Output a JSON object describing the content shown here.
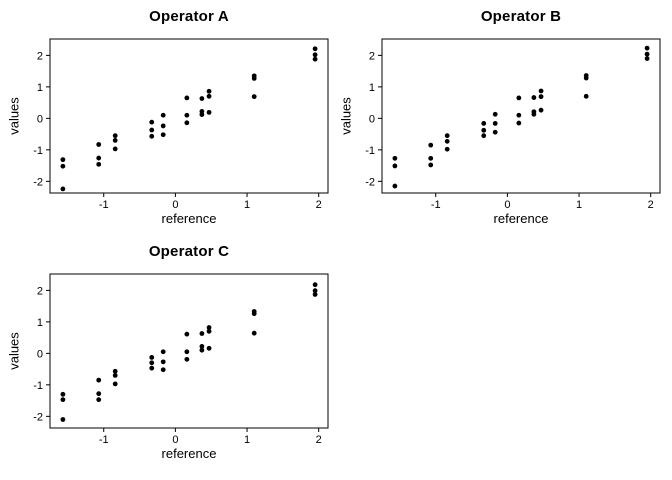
{
  "figure": {
    "kind": "r-scatterplot-grid",
    "background_color": "#ffffff",
    "axis_color": "#000000",
    "point_color": "#000000",
    "text_color": "#000000"
  },
  "chart_data": [
    {
      "type": "scatter",
      "title": "Operator A",
      "xlabel": "reference",
      "ylabel": "values",
      "xlim": [
        -1.75,
        2.13
      ],
      "ylim": [
        -2.37,
        2.52
      ],
      "xticks": [
        -1,
        0,
        1,
        2
      ],
      "yticks": [
        -2,
        -1,
        0,
        1,
        2
      ],
      "grid": false,
      "legend": null,
      "points": [
        [
          -1.57,
          -1.31
        ],
        [
          -1.57,
          -1.52
        ],
        [
          -1.57,
          -2.24
        ],
        [
          -1.07,
          -0.83
        ],
        [
          -1.07,
          -1.26
        ],
        [
          -1.07,
          -1.46
        ],
        [
          -0.84,
          -0.55
        ],
        [
          -0.84,
          -0.7
        ],
        [
          -0.84,
          -0.97
        ],
        [
          -0.33,
          -0.12
        ],
        [
          -0.33,
          -0.37
        ],
        [
          -0.33,
          -0.57
        ],
        [
          -0.17,
          0.1
        ],
        [
          -0.17,
          -0.24
        ],
        [
          -0.17,
          -0.52
        ],
        [
          0.16,
          0.65
        ],
        [
          0.16,
          0.1
        ],
        [
          0.16,
          -0.14
        ],
        [
          0.37,
          0.63
        ],
        [
          0.37,
          0.22
        ],
        [
          0.37,
          0.12
        ],
        [
          0.47,
          0.86
        ],
        [
          0.47,
          0.7
        ],
        [
          0.47,
          0.19
        ],
        [
          1.1,
          1.35
        ],
        [
          1.1,
          1.27
        ],
        [
          1.1,
          0.69
        ],
        [
          1.95,
          2.21
        ],
        [
          1.95,
          2.02
        ],
        [
          1.95,
          1.88
        ]
      ]
    },
    {
      "type": "scatter",
      "title": "Operator B",
      "xlabel": "reference",
      "ylabel": "values",
      "xlim": [
        -1.75,
        2.13
      ],
      "ylim": [
        -2.37,
        2.52
      ],
      "xticks": [
        -1,
        0,
        1,
        2
      ],
      "yticks": [
        -2,
        -1,
        0,
        1,
        2
      ],
      "grid": false,
      "legend": null,
      "points": [
        [
          -1.57,
          -1.27
        ],
        [
          -1.57,
          -1.51
        ],
        [
          -1.57,
          -2.15
        ],
        [
          -1.07,
          -0.85
        ],
        [
          -1.07,
          -1.27
        ],
        [
          -1.07,
          -1.48
        ],
        [
          -0.84,
          -0.55
        ],
        [
          -0.84,
          -0.73
        ],
        [
          -0.84,
          -0.98
        ],
        [
          -0.33,
          -0.16
        ],
        [
          -0.33,
          -0.38
        ],
        [
          -0.33,
          -0.55
        ],
        [
          -0.17,
          0.13
        ],
        [
          -0.17,
          -0.16
        ],
        [
          -0.17,
          -0.44
        ],
        [
          0.16,
          0.65
        ],
        [
          0.16,
          0.1
        ],
        [
          0.16,
          -0.15
        ],
        [
          0.37,
          0.66
        ],
        [
          0.37,
          0.21
        ],
        [
          0.37,
          0.13
        ],
        [
          0.47,
          0.87
        ],
        [
          0.47,
          0.69
        ],
        [
          0.47,
          0.26
        ],
        [
          1.1,
          1.36
        ],
        [
          1.1,
          1.28
        ],
        [
          1.1,
          0.7
        ],
        [
          1.95,
          2.23
        ],
        [
          1.95,
          2.04
        ],
        [
          1.95,
          1.9
        ]
      ]
    },
    {
      "type": "scatter",
      "title": "Operator C",
      "xlabel": "reference",
      "ylabel": "values",
      "xlim": [
        -1.75,
        2.13
      ],
      "ylim": [
        -2.37,
        2.52
      ],
      "xticks": [
        -1,
        0,
        1,
        2
      ],
      "yticks": [
        -2,
        -1,
        0,
        1,
        2
      ],
      "grid": false,
      "legend": null,
      "points": [
        [
          -1.57,
          -1.3
        ],
        [
          -1.57,
          -1.47
        ],
        [
          -1.57,
          -2.1
        ],
        [
          -1.07,
          -0.85
        ],
        [
          -1.07,
          -1.28
        ],
        [
          -1.07,
          -1.47
        ],
        [
          -0.84,
          -0.57
        ],
        [
          -0.84,
          -0.7
        ],
        [
          -0.84,
          -0.97
        ],
        [
          -0.33,
          -0.13
        ],
        [
          -0.33,
          -0.3
        ],
        [
          -0.33,
          -0.47
        ],
        [
          -0.17,
          0.05
        ],
        [
          -0.17,
          -0.27
        ],
        [
          -0.17,
          -0.52
        ],
        [
          0.16,
          0.61
        ],
        [
          0.16,
          0.05
        ],
        [
          0.16,
          -0.19
        ],
        [
          0.37,
          0.63
        ],
        [
          0.37,
          0.22
        ],
        [
          0.37,
          0.1
        ],
        [
          0.47,
          0.82
        ],
        [
          0.47,
          0.7
        ],
        [
          0.47,
          0.16
        ],
        [
          1.1,
          1.33
        ],
        [
          1.1,
          1.26
        ],
        [
          1.1,
          0.64
        ],
        [
          1.95,
          2.18
        ],
        [
          1.95,
          1.99
        ],
        [
          1.95,
          1.87
        ]
      ]
    }
  ]
}
